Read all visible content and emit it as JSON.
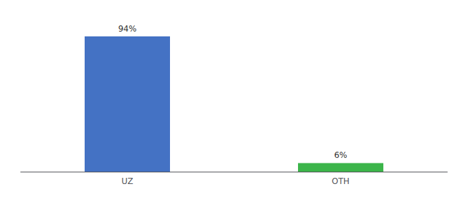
{
  "chart_data": {
    "type": "bar",
    "categories": [
      "UZ",
      "OTH"
    ],
    "values": [
      94,
      6
    ],
    "value_labels": [
      "94%",
      "6%"
    ],
    "colors": [
      "#4472c4",
      "#3cb54a"
    ],
    "ylim": [
      0,
      105
    ],
    "grid": false,
    "data_labels": true,
    "tick_labels": "x"
  }
}
